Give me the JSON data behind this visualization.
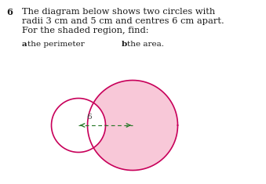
{
  "background_color": "#ffffff",
  "question_number": "6",
  "question_text_line1": "The diagram below shows two circles with",
  "question_text_line2": "radii 3 cm and 5 cm and centres 6 cm apart.",
  "question_text_line3": "For the shaded region, find:",
  "part_a_bold": "a",
  "part_a_rest": "  the perimeter",
  "part_b_bold": "b",
  "part_b_rest": "  the area.",
  "r_small": 3,
  "r_large": 5,
  "d_centers": 6,
  "circle_color": "#c8005a",
  "shade_color": "#f8c8d8",
  "arrow_color": "#2a7a2a",
  "label_color": "#444444",
  "text_color": "#1a1a1a",
  "text_fontsize": 8.2,
  "label_fontsize": 7.5
}
